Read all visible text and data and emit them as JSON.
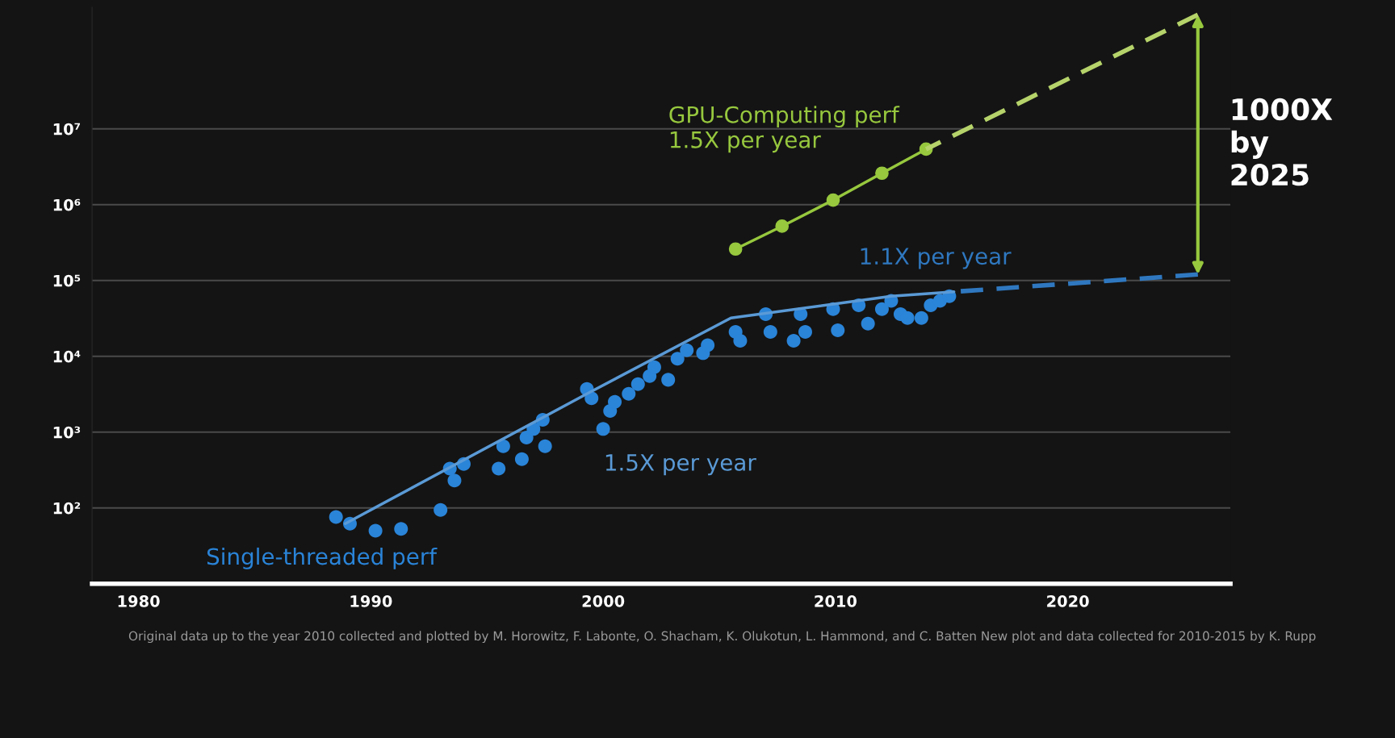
{
  "chart_data": {
    "type": "scatter",
    "xlim": [
      1978,
      2027
    ],
    "xticks": [
      1980,
      1990,
      2000,
      2010,
      2020
    ],
    "ylim": [
      10,
      400000000
    ],
    "yticks": [
      {
        "value": 100,
        "label": "10²"
      },
      {
        "value": 1000,
        "label": "10³"
      },
      {
        "value": 10000,
        "label": "10⁴"
      },
      {
        "value": 100000,
        "label": "10⁵"
      },
      {
        "value": 1000000,
        "label": "10⁶"
      },
      {
        "value": 10000000,
        "label": "10⁷"
      }
    ],
    "log": "y",
    "grid": "y",
    "legend": false,
    "series": [
      {
        "name": "Single-threaded perf",
        "color": "#2a84d8",
        "marker": "circle",
        "x": [
          1988.5,
          1989.1,
          1990.2,
          1991.3,
          1993.0,
          1993.4,
          1993.6,
          1994.0,
          1995.5,
          1995.7,
          1996.5,
          1996.7,
          1997.0,
          1997.4,
          1997.5,
          1999.3,
          1999.5,
          2000.0,
          2000.3,
          2000.5,
          2001.1,
          2001.5,
          2002.0,
          2002.2,
          2002.8,
          2003.2,
          2003.6,
          2004.3,
          2004.5,
          2005.7,
          2005.9,
          2007.0,
          2007.2,
          2008.2,
          2008.5,
          2008.7,
          2009.9,
          2010.1,
          2011.0,
          2011.4,
          2012.0,
          2012.4,
          2012.8,
          2013.1,
          2013.7,
          2014.1,
          2014.5,
          2014.9
        ],
        "values": [
          76,
          62,
          50,
          53,
          94,
          330,
          230,
          380,
          330,
          650,
          440,
          850,
          1100,
          1450,
          650,
          3700,
          2800,
          1100,
          1900,
          2500,
          3200,
          4300,
          5500,
          7200,
          4900,
          9300,
          12000,
          11000,
          14000,
          21000,
          16000,
          36000,
          21000,
          16000,
          36000,
          21000,
          42000,
          22000,
          47000,
          27000,
          42000,
          54000,
          36000,
          32000,
          32000,
          47000,
          54000,
          62000
        ]
      },
      {
        "name": "1.5X per year",
        "type": "line",
        "color": "#5a9ad6",
        "line_style": "solid",
        "x": [
          1988.9,
          1999.3,
          2005.5,
          2012.4,
          2015.1
        ],
        "values": [
          62,
          3200,
          32000,
          62000,
          71000
        ]
      },
      {
        "name": "1.1X per year",
        "type": "line",
        "color": "#2f78c0",
        "line_style": "dashed",
        "x": [
          2015.1,
          2025.6
        ],
        "values": [
          71000,
          120000
        ]
      },
      {
        "name": "GPU-Computing perf\n1.5X per year",
        "type": "line",
        "color": "#97c83e",
        "line_style": "solid",
        "marker": "circle",
        "x": [
          2005.7,
          2007.7,
          2009.9,
          2012.0,
          2013.9
        ],
        "values": [
          260000,
          520000,
          1150000,
          2600000,
          5400000
        ]
      },
      {
        "type": "line",
        "color": "#b5d36a",
        "line_style": "dashed",
        "x": [
          2013.9,
          2025.6
        ],
        "values": [
          5400000,
          320000000
        ]
      }
    ],
    "annotations": [
      "1000X\nby\n2025",
      "Original data up to the year 2010 collected and plotted by M. Horowitz, F. Labonte, O. Shacham, K. Olukotun, L. Hammond, and C. Batten New plot and data collected for 2010-2015 by K. Rupp"
    ]
  }
}
